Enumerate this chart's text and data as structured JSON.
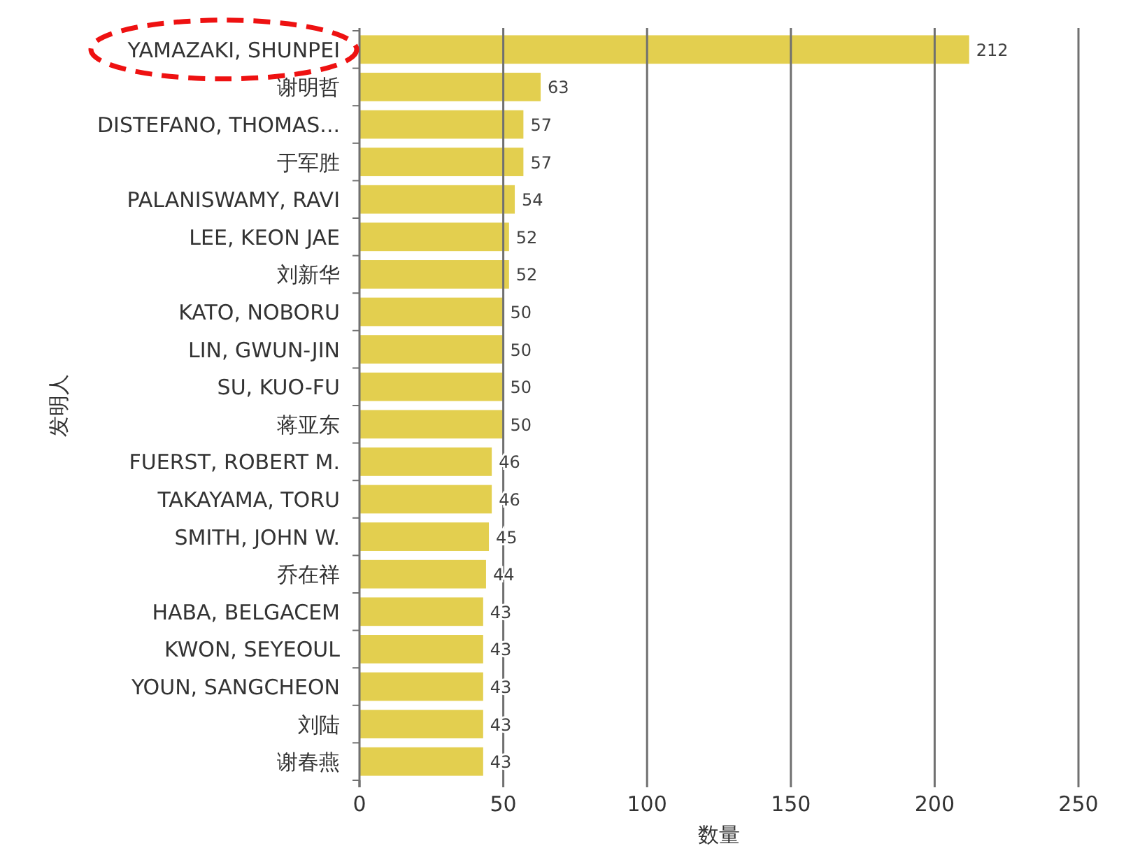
{
  "chart_data": {
    "type": "bar",
    "orientation": "horizontal",
    "xlabel": "数量",
    "ylabel": "发明人",
    "categories": [
      "YAMAZAKI, SHUNPEI",
      "谢明哲",
      "DISTEFANO, THOMAS...",
      "于军胜",
      "PALANISWAMY, RAVI",
      "LEE, KEON JAE",
      "刘新华",
      "KATO, NOBORU",
      "LIN, GWUN-JIN",
      "SU, KUO-FU",
      "蒋亚东",
      "FUERST, ROBERT M.",
      "TAKAYAMA, TORU",
      "SMITH, JOHN W.",
      "乔在祥",
      "HABA, BELGACEM",
      "KWON, SEYEOUL",
      "YOUN, SANGCHEON",
      "刘陆",
      "谢春燕"
    ],
    "values": [
      212,
      63,
      57,
      57,
      54,
      52,
      52,
      50,
      50,
      50,
      50,
      46,
      46,
      45,
      44,
      43,
      43,
      43,
      43,
      43
    ],
    "color": "#e3cf4f",
    "xlim": [
      0,
      250
    ],
    "xticks": [
      0,
      50,
      100,
      150,
      200,
      250
    ],
    "grid": "x",
    "data_labels": true
  }
}
